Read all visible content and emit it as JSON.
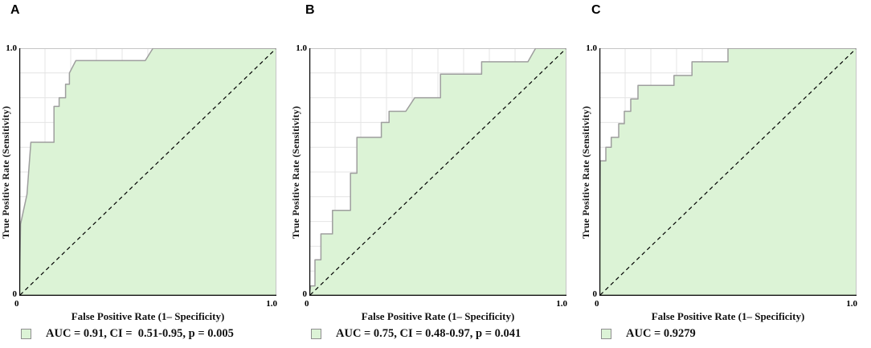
{
  "colors": {
    "roc_fill": "#dcf3d6",
    "roc_stroke": "#9e9e9e",
    "grid": "#e4e4e4",
    "frame": "#c6c6c6",
    "axis": "#000000",
    "diagonal": "#000000",
    "background": "#ffffff"
  },
  "chart_data": [
    {
      "type": "line",
      "panel": "A",
      "title": "",
      "xlabel": "False Positive Rate (1– Specificity)",
      "ylabel": "True Positive Rate (Sensitivity)",
      "xlim": [
        0,
        1
      ],
      "ylim": [
        0,
        1
      ],
      "xticks": [
        "0",
        "1.0"
      ],
      "yticks": [
        "0",
        "1.0"
      ],
      "grid": true,
      "grid_step": 0.1,
      "legend_position": "below",
      "legend": "AUC = 0.91, CI =  0.51-0.95, p = 0.005",
      "auc": 0.91,
      "ci": "0.51-0.95",
      "p_value": 0.005,
      "reference_line": "dashed diagonal from (0,0) to (1,1)",
      "series": [
        {
          "name": "ROC curve",
          "points": [
            [
              0,
              0
            ],
            [
              0.005,
              0.29
            ],
            [
              0.03,
              0.41
            ],
            [
              0.045,
              0.62
            ],
            [
              0.135,
              0.62
            ],
            [
              0.135,
              0.765
            ],
            [
              0.155,
              0.765
            ],
            [
              0.155,
              0.8
            ],
            [
              0.18,
              0.8
            ],
            [
              0.18,
              0.855
            ],
            [
              0.195,
              0.855
            ],
            [
              0.195,
              0.9
            ],
            [
              0.22,
              0.95
            ],
            [
              0.49,
              0.95
            ],
            [
              0.52,
              1
            ],
            [
              1,
              1
            ]
          ]
        }
      ]
    },
    {
      "type": "line",
      "panel": "B",
      "title": "",
      "xlabel": "False Positive Rate (1– Specificity)",
      "ylabel": "True Positive Rate (Sensitivity)",
      "xlim": [
        0,
        1
      ],
      "ylim": [
        0,
        1
      ],
      "xticks": [
        "0",
        "1.0"
      ],
      "yticks": [
        "0",
        "1.0"
      ],
      "grid": true,
      "grid_step": 0.1,
      "legend_position": "below",
      "legend": "AUC = 0.75, CI = 0.48-0.97, p = 0.041",
      "auc": 0.75,
      "ci": "0.48-0.97",
      "p_value": 0.041,
      "reference_line": "dashed diagonal from (0,0) to (1,1)",
      "series": [
        {
          "name": "ROC curve",
          "points": [
            [
              0,
              0
            ],
            [
              0.005,
              0.04
            ],
            [
              0.022,
              0.04
            ],
            [
              0.022,
              0.145
            ],
            [
              0.045,
              0.145
            ],
            [
              0.045,
              0.25
            ],
            [
              0.09,
              0.25
            ],
            [
              0.09,
              0.345
            ],
            [
              0.16,
              0.345
            ],
            [
              0.16,
              0.495
            ],
            [
              0.185,
              0.495
            ],
            [
              0.185,
              0.64
            ],
            [
              0.28,
              0.64
            ],
            [
              0.28,
              0.7
            ],
            [
              0.31,
              0.7
            ],
            [
              0.31,
              0.745
            ],
            [
              0.375,
              0.745
            ],
            [
              0.41,
              0.8
            ],
            [
              0.51,
              0.8
            ],
            [
              0.51,
              0.895
            ],
            [
              0.67,
              0.895
            ],
            [
              0.67,
              0.945
            ],
            [
              0.85,
              0.945
            ],
            [
              0.88,
              1
            ],
            [
              1,
              1
            ]
          ]
        }
      ]
    },
    {
      "type": "line",
      "panel": "C",
      "title": "",
      "xlabel": "False Positive Rate (1– Specificity)",
      "ylabel": "True Positive Rate (Sensitivity)",
      "xlim": [
        0,
        1
      ],
      "ylim": [
        0,
        1
      ],
      "xticks": [
        "0",
        "1.0"
      ],
      "yticks": [
        "0",
        "1.0"
      ],
      "grid": true,
      "grid_step": 0.1,
      "legend_position": "below",
      "legend": "AUC = 0.9279",
      "auc": 0.9279,
      "reference_line": "dashed diagonal from (0,0) to (1,1)",
      "series": [
        {
          "name": "ROC curve",
          "points": [
            [
              0,
              0
            ],
            [
              0.003,
              0.545
            ],
            [
              0.025,
              0.545
            ],
            [
              0.025,
              0.6
            ],
            [
              0.046,
              0.6
            ],
            [
              0.046,
              0.64
            ],
            [
              0.075,
              0.64
            ],
            [
              0.075,
              0.695
            ],
            [
              0.097,
              0.695
            ],
            [
              0.097,
              0.745
            ],
            [
              0.122,
              0.745
            ],
            [
              0.122,
              0.795
            ],
            [
              0.15,
              0.795
            ],
            [
              0.15,
              0.85
            ],
            [
              0.29,
              0.85
            ],
            [
              0.29,
              0.89
            ],
            [
              0.36,
              0.89
            ],
            [
              0.36,
              0.945
            ],
            [
              0.5,
              0.945
            ],
            [
              0.5,
              1
            ],
            [
              1,
              1
            ]
          ]
        }
      ]
    }
  ]
}
